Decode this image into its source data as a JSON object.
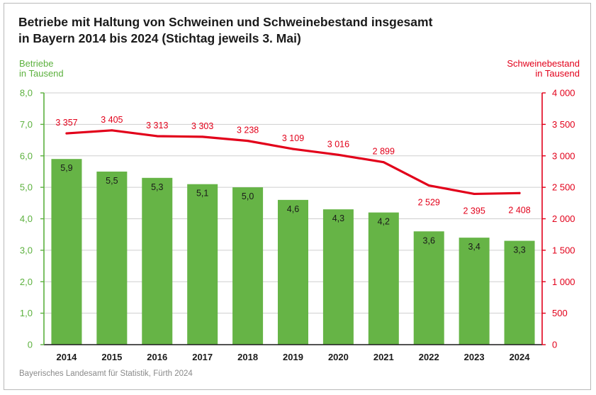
{
  "header": {
    "title_line1": "Betriebe mit Haltung von Schweinen und Schweinebestand insgesamt",
    "title_line2": "in Bayern 2014 bis 2024 (Stichtag jeweils 3. Mai)"
  },
  "axes": {
    "left_line1": "Betriebe",
    "left_line2": "in Tausend",
    "right_line1": "Schweinebestand",
    "right_line2": "in Tausend"
  },
  "footer": {
    "source": "Bayerisches Landesamt für Statistik, Fürth 2024"
  },
  "colors": {
    "bars": "#66b446",
    "line": "#e2001a",
    "left_axis": "#5cb13e",
    "right_axis": "#e2001a",
    "grid": "#cfcfcf"
  },
  "chart_data": {
    "type": "bar",
    "categories": [
      "2014",
      "2015",
      "2016",
      "2017",
      "2018",
      "2019",
      "2020",
      "2021",
      "2022",
      "2023",
      "2024"
    ],
    "series": [
      {
        "name": "Betriebe",
        "type": "bar",
        "axis": "left",
        "values": [
          5.9,
          5.5,
          5.3,
          5.1,
          5.0,
          4.6,
          4.3,
          4.2,
          3.6,
          3.4,
          3.3
        ],
        "labels": [
          "5,9",
          "5,5",
          "5,3",
          "5,1",
          "5,0",
          "4,6",
          "4,3",
          "4,2",
          "3,6",
          "3,4",
          "3,3"
        ]
      },
      {
        "name": "Schweinebestand",
        "type": "line",
        "axis": "right",
        "values": [
          3357,
          3405,
          3313,
          3303,
          3238,
          3109,
          3016,
          2899,
          2529,
          2395,
          2408
        ],
        "labels": [
          "3 357",
          "3 405",
          "3 313",
          "3 303",
          "3 238",
          "3 109",
          "3 016",
          "2 899",
          "2 529",
          "2 395",
          "2 408"
        ]
      }
    ],
    "y_left": {
      "lim": [
        0,
        8
      ],
      "ticks": [
        0,
        1,
        2,
        3,
        4,
        5,
        6,
        7,
        8
      ],
      "tick_labels": [
        "0",
        "1,0",
        "2,0",
        "3,0",
        "4,0",
        "5,0",
        "6,0",
        "7,0",
        "8,0"
      ]
    },
    "y_right": {
      "lim": [
        0,
        4000
      ],
      "ticks": [
        0,
        500,
        1000,
        1500,
        2000,
        2500,
        3000,
        3500,
        4000
      ],
      "tick_labels": [
        "0",
        "500",
        "1 000",
        "1 500",
        "2 000",
        "2 500",
        "3 000",
        "3 500",
        "4 000"
      ]
    },
    "grid": true
  }
}
